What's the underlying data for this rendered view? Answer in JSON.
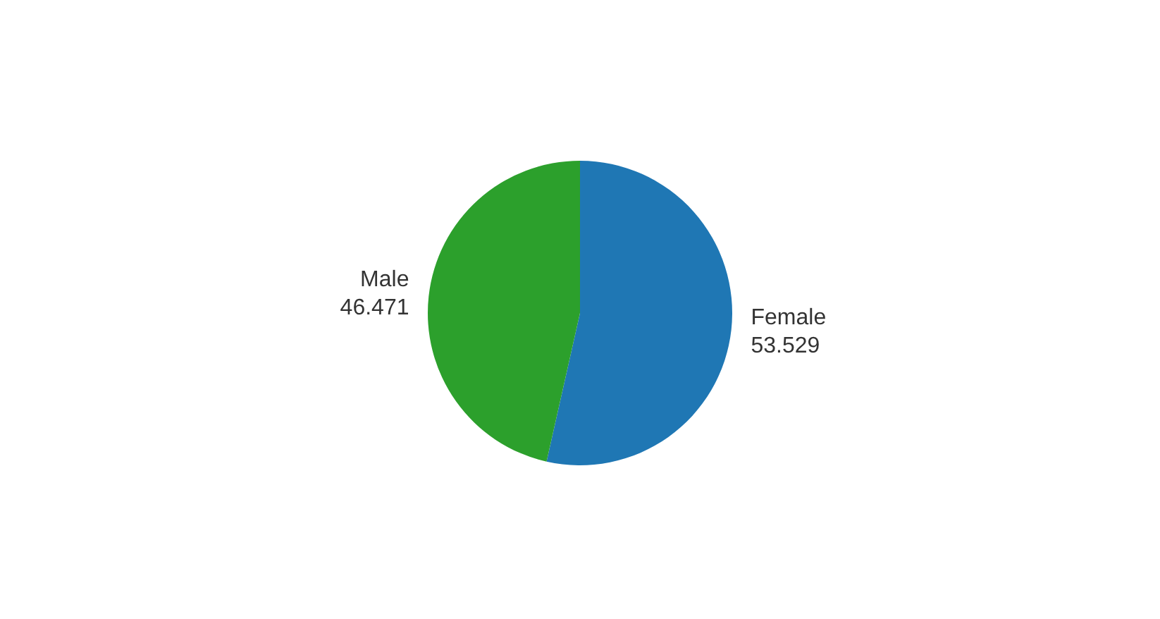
{
  "chart_data": {
    "type": "pie",
    "categories": [
      "Female",
      "Male"
    ],
    "values": [
      53.529,
      46.471
    ],
    "colors": [
      "#1f77b4",
      "#2ca02c"
    ],
    "data_labels": true,
    "legend": false
  }
}
